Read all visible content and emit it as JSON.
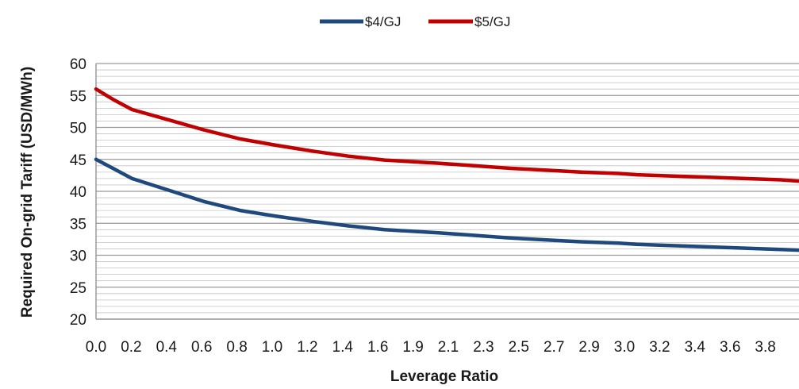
{
  "chart_data": {
    "type": "line",
    "title": "",
    "xlabel": "Leverage Ratio",
    "ylabel": "Required On-grid Tariff (USD/MWh)",
    "ylim": [
      20,
      60
    ],
    "y_ticks": [
      20,
      25,
      30,
      35,
      40,
      45,
      50,
      55,
      60
    ],
    "x_tick_labels": [
      "0.0",
      "0.2",
      "0.4",
      "0.6",
      "0.8",
      "1.0",
      "1.2",
      "1.4",
      "1.6",
      "1.9",
      "2.1",
      "2.3",
      "2.5",
      "2.7",
      "2.9",
      "3.0",
      "3.2",
      "3.4",
      "3.6",
      "3.8"
    ],
    "grid": true,
    "legend_position": "top-center",
    "series": [
      {
        "name": "$4/GJ",
        "color": "#1f497d",
        "x": [
          0.0,
          0.1,
          0.2,
          0.4,
          0.6,
          0.8,
          1.0,
          1.2,
          1.4,
          1.6,
          1.9,
          2.1,
          2.3,
          2.5,
          2.7,
          2.9,
          3.0,
          3.2,
          3.4,
          3.6,
          3.8,
          3.9
        ],
        "values": [
          45.0,
          43.5,
          42.0,
          40.2,
          38.4,
          37.0,
          36.1,
          35.3,
          34.6,
          34.0,
          33.5,
          33.1,
          32.7,
          32.4,
          32.1,
          31.9,
          31.7,
          31.5,
          31.3,
          31.1,
          30.9,
          30.8
        ]
      },
      {
        "name": "$5/GJ",
        "color": "#c00000",
        "x": [
          0.0,
          0.1,
          0.2,
          0.4,
          0.6,
          0.8,
          1.0,
          1.2,
          1.4,
          1.6,
          1.9,
          2.1,
          2.3,
          2.5,
          2.7,
          2.9,
          3.0,
          3.2,
          3.4,
          3.6,
          3.8,
          3.9
        ],
        "values": [
          56.0,
          54.3,
          52.8,
          51.2,
          49.6,
          48.2,
          47.2,
          46.3,
          45.5,
          44.9,
          44.4,
          44.0,
          43.6,
          43.3,
          43.0,
          42.8,
          42.6,
          42.4,
          42.2,
          42.0,
          41.8,
          41.6
        ]
      }
    ]
  }
}
